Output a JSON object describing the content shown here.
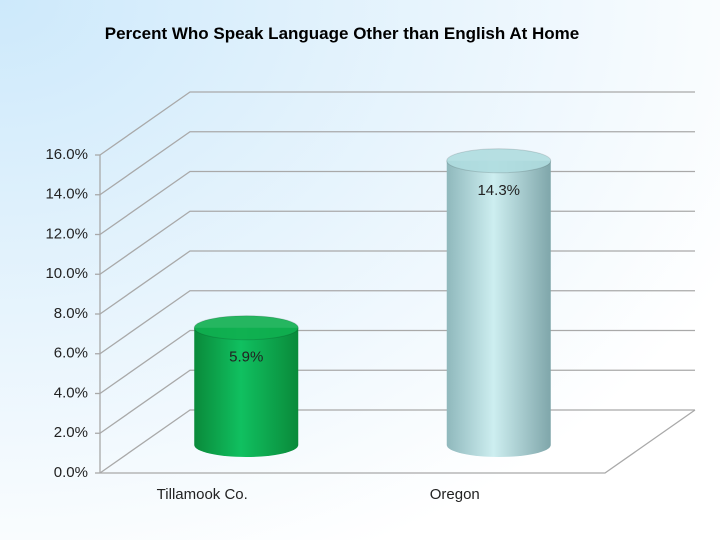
{
  "chart_data": {
    "type": "bar",
    "title": "Percent Who Speak Language Other than English At Home",
    "categories": [
      "Tillamook Co.",
      "Oregon"
    ],
    "values": [
      5.9,
      14.3
    ],
    "value_labels": [
      "5.9%",
      "14.3%"
    ],
    "colors": [
      "#10b050",
      "#b0dde0"
    ],
    "ylim": [
      0,
      16
    ],
    "yticks": [
      {
        "value": 0,
        "label": "0.0%"
      },
      {
        "value": 2,
        "label": "2.0%"
      },
      {
        "value": 4,
        "label": "4.0%"
      },
      {
        "value": 6,
        "label": "6.0%"
      },
      {
        "value": 8,
        "label": "8.0%"
      },
      {
        "value": 10,
        "label": "10.0%"
      },
      {
        "value": 12,
        "label": "12.0%"
      },
      {
        "value": 14,
        "label": "14.0%"
      },
      {
        "value": 16,
        "label": "16.0%"
      }
    ],
    "grid": true
  }
}
